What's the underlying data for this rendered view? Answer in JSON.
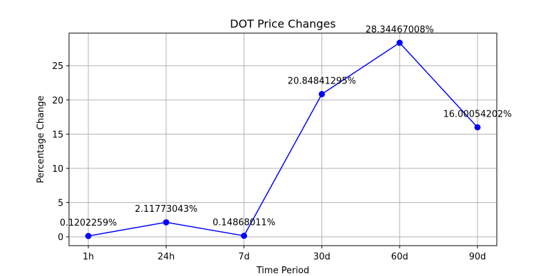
{
  "chart_data": {
    "type": "line",
    "title": "DOT Price Changes",
    "xlabel": "Time Period",
    "ylabel": "Percentage Change",
    "categories": [
      "1h",
      "24h",
      "7d",
      "30d",
      "60d",
      "90d"
    ],
    "series": [
      {
        "values": [
          0.1202259,
          2.11773043,
          0.14868011,
          20.84841295,
          28.34467008,
          16.00054202
        ],
        "color": "#0000ff",
        "marker": "circle"
      }
    ],
    "data_labels": [
      "0.1202259%",
      "2.11773043%",
      "0.14868011%",
      "20.84841295%",
      "28.34467008%",
      "16.00054202%"
    ],
    "y_ticks": [
      0,
      5,
      10,
      15,
      20,
      25
    ],
    "ylim": [
      -1.29,
      29.76
    ],
    "grid": true
  }
}
